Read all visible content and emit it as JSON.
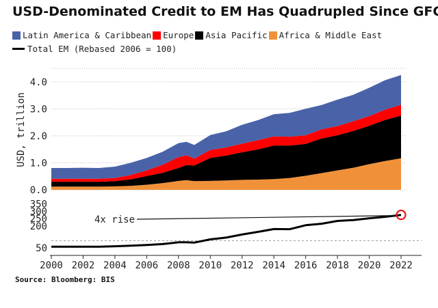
{
  "title": "USD-Denominated Credit to EM Has Quadrupled Since GFC",
  "source": "Source: Bloomberg: BIS",
  "colors": {
    "latin_america": "#4a63a8",
    "europe": "#ff0000",
    "asia_pacific": "#000000",
    "africa_middle_east": "#f0913a",
    "total": "#000000",
    "highlight": "#e8141c"
  },
  "chart_data": [
    {
      "type": "area",
      "stacked": true,
      "title": "USD-Denominated Credit to EM Has Quadrupled Since GFC",
      "ylabel": "USD, trillion",
      "ylim": [
        0,
        4.5
      ],
      "yticks": [
        "0.0",
        "1.0",
        "2.0",
        "3.0",
        "4.0"
      ],
      "grid": "horizontal dotted",
      "legend_position": "top",
      "x": [
        2000,
        2001,
        2002,
        2003,
        2004,
        2005,
        2006,
        2007,
        2008,
        2008.5,
        2009,
        2010,
        2011,
        2012,
        2013,
        2014,
        2015,
        2016,
        2017,
        2018,
        2019,
        2020,
        2021,
        2022
      ],
      "series": [
        {
          "name": "Africa & Middle East",
          "values": [
            0.12,
            0.12,
            0.12,
            0.12,
            0.13,
            0.15,
            0.19,
            0.25,
            0.33,
            0.36,
            0.32,
            0.33,
            0.35,
            0.37,
            0.38,
            0.4,
            0.44,
            0.52,
            0.62,
            0.72,
            0.82,
            0.95,
            1.07,
            1.17
          ]
        },
        {
          "name": "Asia Pacific",
          "values": [
            0.18,
            0.18,
            0.18,
            0.18,
            0.19,
            0.24,
            0.32,
            0.38,
            0.48,
            0.56,
            0.58,
            0.85,
            0.92,
            1.02,
            1.12,
            1.24,
            1.2,
            1.18,
            1.28,
            1.3,
            1.36,
            1.42,
            1.52,
            1.58
          ]
        },
        {
          "name": "Europe",
          "values": [
            0.11,
            0.11,
            0.11,
            0.11,
            0.12,
            0.16,
            0.21,
            0.3,
            0.4,
            0.36,
            0.26,
            0.3,
            0.3,
            0.32,
            0.34,
            0.34,
            0.33,
            0.32,
            0.34,
            0.34,
            0.36,
            0.36,
            0.38,
            0.4
          ]
        },
        {
          "name": "Latin America & Caribbean",
          "values": [
            0.4,
            0.4,
            0.41,
            0.4,
            0.42,
            0.45,
            0.46,
            0.48,
            0.52,
            0.5,
            0.5,
            0.55,
            0.6,
            0.7,
            0.74,
            0.82,
            0.88,
            0.98,
            0.9,
            0.98,
            0.98,
            1.05,
            1.09,
            1.1
          ]
        }
      ]
    },
    {
      "type": "line",
      "series_name": "Total EM (Rebased 2006 = 100)",
      "ylim": [
        0,
        380
      ],
      "yticks": [
        "50",
        "200",
        "250",
        "300",
        "350"
      ],
      "xlim": [
        2000,
        2022
      ],
      "xticks": [
        "2000",
        "2002",
        "2004",
        "2006",
        "2008",
        "2010",
        "2012",
        "2014",
        "2016",
        "2018",
        "2020",
        "2022"
      ],
      "reference_line": {
        "y": 100,
        "style": "dashed"
      },
      "x": [
        2000,
        2001,
        2002,
        2003,
        2004,
        2005,
        2006,
        2007,
        2008,
        2008.5,
        2009,
        2010,
        2011,
        2012,
        2013,
        2014,
        2015,
        2016,
        2017,
        2018,
        2019,
        2020,
        2021,
        2022
      ],
      "values": [
        59,
        59,
        59,
        59,
        62,
        66,
        71,
        77,
        89,
        89,
        87,
        109,
        121,
        142,
        160,
        179,
        178,
        205,
        215,
        234,
        240,
        252,
        262,
        275
      ],
      "annotations": [
        {
          "text": "4x rise",
          "arrow_to": [
            2022,
            275
          ]
        }
      ]
    }
  ]
}
